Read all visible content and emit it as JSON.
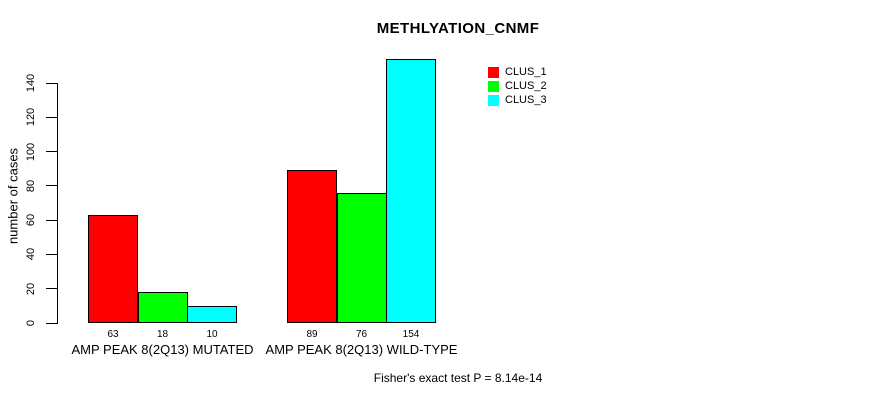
{
  "chart_data": {
    "type": "bar",
    "title": "METHLYATION_CNMF",
    "ylabel": "number of cases",
    "xlabel": "",
    "ylim": [
      0,
      140
    ],
    "yticks": [
      0,
      20,
      40,
      60,
      80,
      100,
      120,
      140
    ],
    "categories": [
      "AMP PEAK  8(2Q13) MUTATED",
      "AMP PEAK  8(2Q13) WILD-TYPE"
    ],
    "series": [
      {
        "name": "CLUS_1",
        "color": "#FF0000",
        "values": [
          63,
          89
        ]
      },
      {
        "name": "CLUS_2",
        "color": "#00FF00",
        "values": [
          18,
          76
        ]
      },
      {
        "name": "CLUS_3",
        "color": "#00FFFF",
        "values": [
          10,
          154
        ]
      }
    ],
    "bar_value_labels": [
      [
        63,
        18,
        10
      ],
      [
        89,
        76,
        154
      ]
    ],
    "legend_position": "top-right",
    "grid": false,
    "annotation": "Fisher's exact test P = 8.14e-14"
  },
  "colors": {
    "background": "#FFFFFF",
    "text": "#000000",
    "axis": "#000000"
  }
}
